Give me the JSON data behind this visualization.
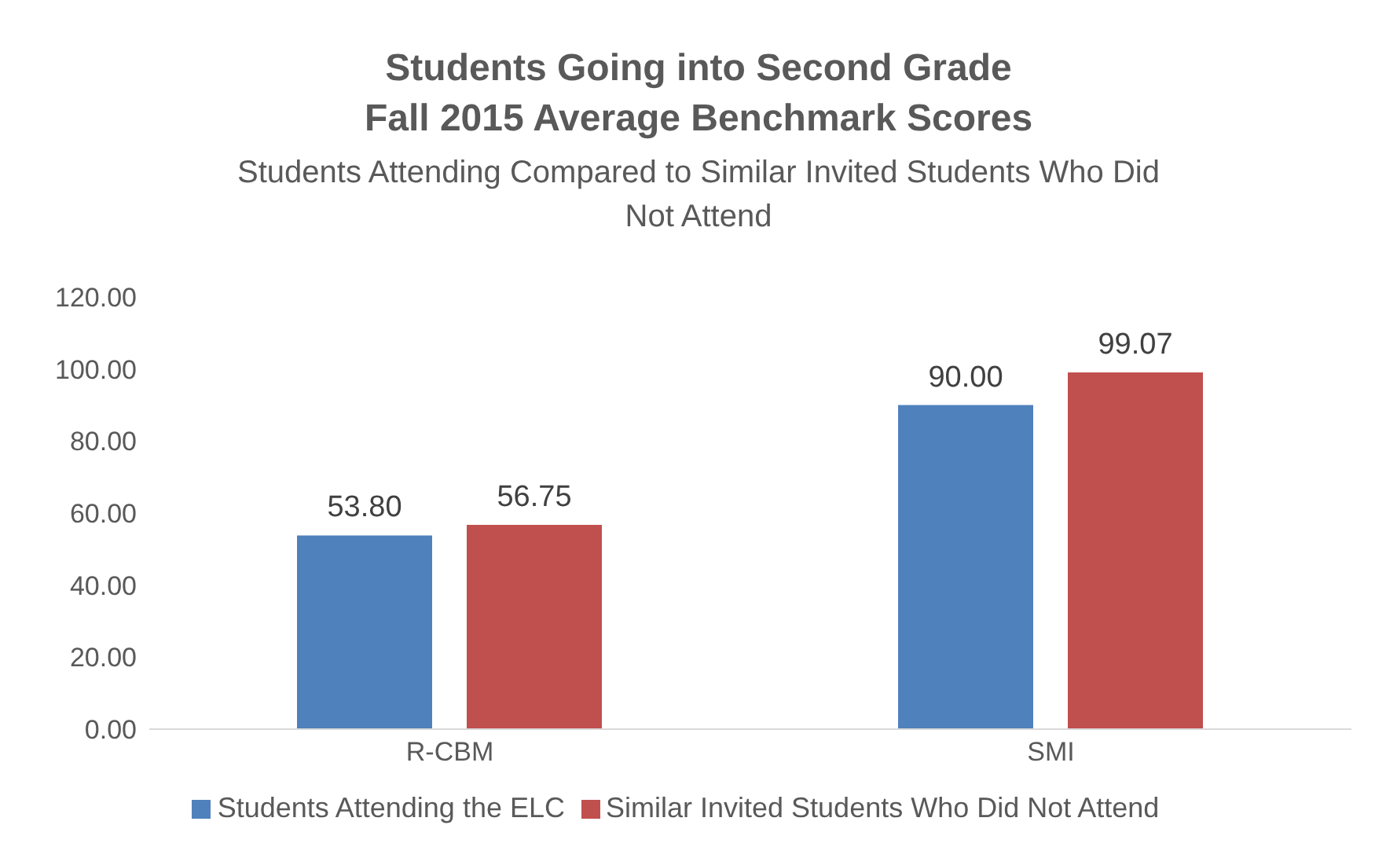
{
  "chart_data": {
    "type": "bar",
    "title": "Students Going into Second Grade\nFall 2015 Average Benchmark Scores",
    "subtitle": "Students Attending Compared to Similar Invited Students Who Did\nNot Attend",
    "categories": [
      "R-CBM",
      "SMI"
    ],
    "series": [
      {
        "name": "Students Attending the ELC",
        "color": "#4f81bd",
        "values": [
          53.8,
          90.0
        ],
        "value_labels": [
          "53.80",
          "90.00"
        ]
      },
      {
        "name": "Similar Invited Students Who Did Not Attend",
        "color": "#c0504d",
        "values": [
          56.75,
          99.07
        ],
        "value_labels": [
          "56.75",
          "99.07"
        ]
      }
    ],
    "ylim": [
      0,
      120
    ],
    "yticks": [
      {
        "value": 0,
        "label": "0.00"
      },
      {
        "value": 20,
        "label": "20.00"
      },
      {
        "value": 40,
        "label": "40.00"
      },
      {
        "value": 60,
        "label": "60.00"
      },
      {
        "value": 80,
        "label": "80.00"
      },
      {
        "value": 100,
        "label": "100.00"
      },
      {
        "value": 120,
        "label": "120.00"
      }
    ],
    "grid": false,
    "legend": "bottom"
  }
}
